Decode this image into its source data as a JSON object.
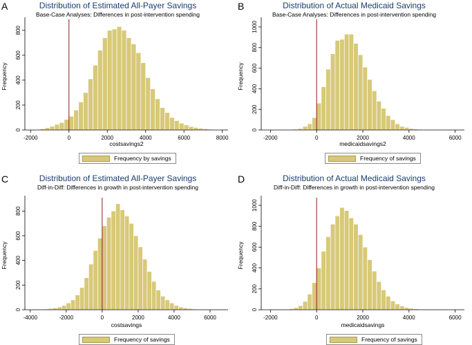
{
  "chart_data": [
    {
      "type": "bar",
      "panel": "A",
      "title": "Distribution of Estimated All-Payer Savings",
      "subtitle": "Base-Case Analyses: Differences in post-intervention spending",
      "xlabel": "costsavings2",
      "ylabel": "Frequency",
      "legend": "Frequency by savings",
      "xlim": [
        -2300,
        8300
      ],
      "ylim": [
        0,
        860
      ],
      "xticks": [
        -2000,
        0,
        2000,
        4000,
        6000,
        8000
      ],
      "yticks": [
        0,
        200,
        400,
        600,
        800
      ],
      "ref_line_x": 0,
      "bin_width": 250,
      "bins": [
        -1750,
        -1500,
        -1250,
        -1000,
        -750,
        -500,
        -250,
        0,
        250,
        500,
        750,
        1000,
        1250,
        1500,
        1750,
        2000,
        2250,
        2500,
        2750,
        3000,
        3250,
        3500,
        3750,
        4000,
        4250,
        4500,
        4750,
        5000,
        5250,
        5500,
        5750,
        6000,
        6250,
        6500,
        6750,
        7000,
        7250,
        7500
      ],
      "values": [
        5,
        10,
        18,
        30,
        45,
        60,
        85,
        110,
        160,
        225,
        300,
        410,
        520,
        640,
        740,
        800,
        810,
        830,
        800,
        740,
        690,
        620,
        540,
        420,
        330,
        250,
        180,
        140,
        100,
        75,
        55,
        40,
        28,
        20,
        14,
        10,
        6,
        4
      ]
    },
    {
      "type": "bar",
      "panel": "B",
      "title": "Distribution of Actual Medicaid Savings",
      "subtitle": "Base-Case Analyses: Differences in post-intervention spending",
      "xlabel": "medicaidsavings2",
      "ylabel": "Frequency",
      "legend": "Frequency of savings",
      "xlim": [
        -2400,
        6400
      ],
      "ylim": [
        0,
        1040
      ],
      "xticks": [
        -2000,
        0,
        2000,
        4000,
        6000
      ],
      "yticks": [
        0,
        200,
        400,
        600,
        800,
        1000
      ],
      "ref_line_x": 0,
      "bin_width": 200,
      "bins": [
        -1200,
        -1000,
        -800,
        -600,
        -400,
        -200,
        0,
        200,
        400,
        600,
        800,
        1000,
        1200,
        1400,
        1600,
        1800,
        2000,
        2200,
        2400,
        2600,
        2800,
        3000,
        3200,
        3400,
        3600,
        3800,
        4000,
        4200,
        4400,
        4600,
        4800,
        5000
      ],
      "values": [
        4,
        8,
        15,
        35,
        60,
        120,
        260,
        420,
        590,
        740,
        870,
        880,
        930,
        930,
        840,
        730,
        610,
        490,
        380,
        280,
        210,
        140,
        100,
        60,
        35,
        25,
        15,
        10,
        6,
        4,
        3,
        2
      ]
    },
    {
      "type": "bar",
      "panel": "C",
      "title": "Distribution of Estimated All-Payer Savings",
      "subtitle": "Diff-in-Diff: Differences in growth in post-intervention spending",
      "xlabel": "costsavings",
      "ylabel": "Frequency",
      "legend": "Frequency of savings",
      "xlim": [
        -4300,
        7000
      ],
      "ylim": [
        0,
        880
      ],
      "xticks": [
        -4000,
        -2000,
        0,
        2000,
        4000,
        6000
      ],
      "yticks": [
        0,
        200,
        400,
        600,
        800
      ],
      "ref_line_x": 0,
      "bin_width": 250,
      "bins": [
        -4000,
        -3750,
        -3500,
        -3250,
        -3000,
        -2750,
        -2500,
        -2250,
        -2000,
        -1750,
        -1500,
        -1250,
        -1000,
        -750,
        -500,
        -250,
        0,
        250,
        500,
        750,
        1000,
        1250,
        1500,
        1750,
        2000,
        2250,
        2500,
        2750,
        3000,
        3250,
        3500,
        3750,
        4000,
        4250,
        4500,
        4750,
        5000,
        5250,
        5500,
        5750,
        6000,
        6250,
        6500
      ],
      "values": [
        2,
        3,
        4,
        6,
        10,
        15,
        22,
        35,
        55,
        80,
        120,
        180,
        260,
        370,
        480,
        580,
        680,
        750,
        800,
        860,
        810,
        760,
        700,
        600,
        510,
        410,
        310,
        230,
        160,
        110,
        80,
        55,
        35,
        22,
        15,
        10,
        6,
        4,
        3,
        2,
        2,
        1,
        1
      ]
    },
    {
      "type": "bar",
      "panel": "D",
      "title": "Distribution of Actual Medicaid Savings",
      "subtitle": "Diff-in-Diff: Differences in growth in post-intervention spending",
      "xlabel": "medicaidsavings",
      "ylabel": "Frequency",
      "legend": "Frequency of savings",
      "xlim": [
        -2400,
        6400
      ],
      "ylim": [
        0,
        1040
      ],
      "xticks": [
        -2000,
        0,
        2000,
        4000,
        6000
      ],
      "yticks": [
        0,
        200,
        400,
        600,
        800,
        1000
      ],
      "ref_line_x": 0,
      "bin_width": 200,
      "bins": [
        -1600,
        -1400,
        -1200,
        -1000,
        -800,
        -600,
        -400,
        -200,
        0,
        200,
        400,
        600,
        800,
        1000,
        1200,
        1400,
        1600,
        1800,
        2000,
        2200,
        2400,
        2600,
        2800,
        3000,
        3200,
        3400,
        3600,
        3800,
        4000,
        4200,
        4400,
        4600,
        4800
      ],
      "values": [
        4,
        6,
        10,
        20,
        40,
        80,
        150,
        260,
        400,
        560,
        700,
        820,
        900,
        980,
        950,
        880,
        820,
        720,
        600,
        480,
        370,
        270,
        190,
        130,
        85,
        55,
        35,
        22,
        14,
        9,
        6,
        4,
        2
      ]
    }
  ],
  "colors": {
    "bar_fill": "#d8c978",
    "bar_stroke": "#ffffff",
    "title": "#1a3c6e",
    "ref_line": "#8b1a1a",
    "axis": "#000000"
  }
}
